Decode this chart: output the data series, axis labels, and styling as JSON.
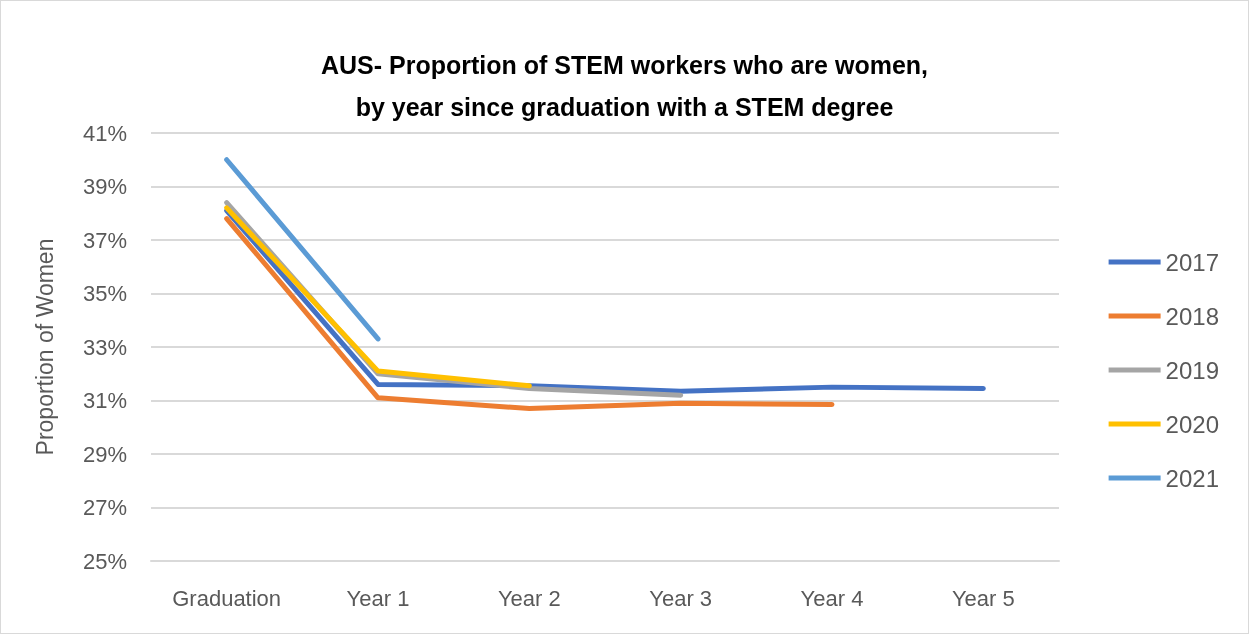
{
  "chart_data": {
    "type": "line",
    "title": "AUS- Proportion of STEM workers who are women,\nby year since graduation with a STEM degree",
    "ylabel": "Proportion of Women",
    "categories": [
      "Graduation",
      "Year 1",
      "Year 2",
      "Year 3",
      "Year 4",
      "Year 5"
    ],
    "series": [
      {
        "name": "2017",
        "color": "#4472c4",
        "values": [
          38.1,
          31.6,
          31.55,
          31.35,
          31.5,
          31.45
        ]
      },
      {
        "name": "2018",
        "color": "#ed7d31",
        "values": [
          37.8,
          31.1,
          30.7,
          30.9,
          30.85,
          null
        ]
      },
      {
        "name": "2019",
        "color": "#a5a5a5",
        "values": [
          38.4,
          32.0,
          31.45,
          31.2,
          null,
          null
        ]
      },
      {
        "name": "2020",
        "color": "#ffc000",
        "values": [
          38.2,
          32.1,
          31.55,
          null,
          null,
          null
        ]
      },
      {
        "name": "2021",
        "color": "#5b9bd5",
        "values": [
          40.0,
          33.3,
          null,
          null,
          null,
          null
        ]
      }
    ],
    "ylim": [
      25,
      41
    ],
    "yticks": [
      {
        "value": 25,
        "label": "25%"
      },
      {
        "value": 27,
        "label": "27%"
      },
      {
        "value": 29,
        "label": "29%"
      },
      {
        "value": 31,
        "label": "31%"
      },
      {
        "value": 33,
        "label": "33%"
      },
      {
        "value": 35,
        "label": "35%"
      },
      {
        "value": 37,
        "label": "37%"
      },
      {
        "value": 39,
        "label": "39%"
      },
      {
        "value": 41,
        "label": "41%"
      }
    ],
    "grid": "y",
    "legend": "right",
    "marker": "none",
    "line_style": "solid"
  }
}
